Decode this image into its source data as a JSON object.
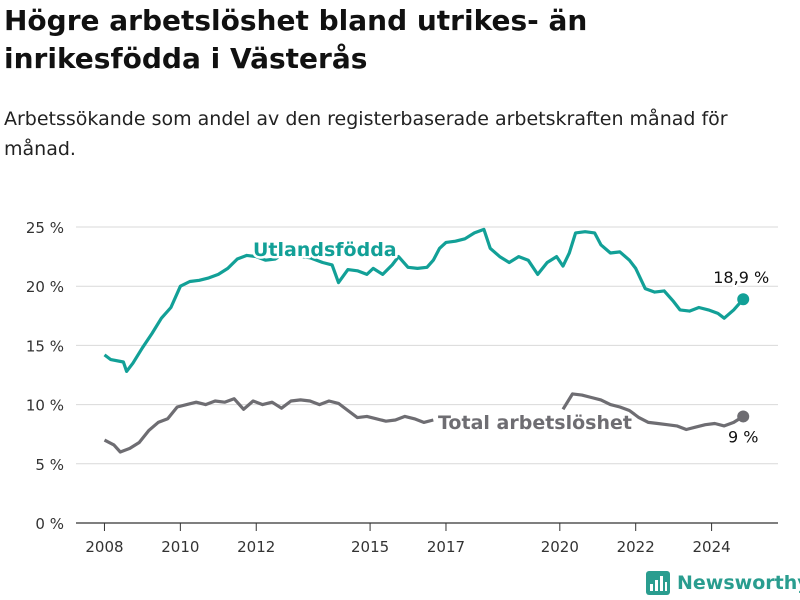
{
  "title": "Högre arbetslöshet bland utrikes- än inrikesfödda i Västerås",
  "subtitle": "Arbetssökande som andel av den registerbaserade arbetskraften månad för månad.",
  "brand": "Newsworthy",
  "colors": {
    "foreign": "#12a097",
    "total": "#6e6d72",
    "brand": "#2a9d8f"
  },
  "chart_data": {
    "type": "line",
    "ylim": [
      0,
      25
    ],
    "y_ticks": [
      0,
      5,
      10,
      15,
      20,
      25
    ],
    "y_tick_labels": [
      "0 %",
      "5 %",
      "10 %",
      "15 %",
      "20 %",
      "25 %"
    ],
    "xlim": [
      "2007-04",
      "2025-10"
    ],
    "x_ticks": [
      "2008-01",
      "2010-01",
      "2012-01",
      "2015-01",
      "2017-01",
      "2020-01",
      "2022-01",
      "2024-01"
    ],
    "x_tick_labels": [
      "2008",
      "2010",
      "2012",
      "2015",
      "2017",
      "2020",
      "2022",
      "2024"
    ],
    "series": [
      {
        "name": "Utlandsfödda",
        "color": "#12a097",
        "end_label": "18,9 %",
        "points": [
          [
            "2008-01",
            14.2
          ],
          [
            "2008-03",
            13.8
          ],
          [
            "2008-07",
            13.6
          ],
          [
            "2008-08",
            12.8
          ],
          [
            "2008-10",
            13.5
          ],
          [
            "2009-01",
            14.8
          ],
          [
            "2009-04",
            16.0
          ],
          [
            "2009-07",
            17.3
          ],
          [
            "2009-10",
            18.2
          ],
          [
            "2010-01",
            20.0
          ],
          [
            "2010-04",
            20.4
          ],
          [
            "2010-07",
            20.5
          ],
          [
            "2010-10",
            20.7
          ],
          [
            "2011-01",
            21.0
          ],
          [
            "2011-04",
            21.5
          ],
          [
            "2011-07",
            22.3
          ],
          [
            "2011-10",
            22.6
          ],
          [
            "2012-01",
            22.5
          ],
          [
            "2012-04",
            22.2
          ],
          [
            "2012-07",
            22.3
          ],
          [
            "2012-10",
            22.8
          ],
          [
            "2013-01",
            22.6
          ],
          [
            "2013-06",
            22.4
          ],
          [
            "2013-10",
            22.0
          ],
          [
            "2014-01",
            21.8
          ],
          [
            "2014-03",
            20.3
          ],
          [
            "2014-06",
            21.4
          ],
          [
            "2014-09",
            21.3
          ],
          [
            "2014-12",
            21.0
          ],
          [
            "2015-02",
            21.5
          ],
          [
            "2015-05",
            21.0
          ],
          [
            "2015-08",
            21.8
          ],
          [
            "2015-10",
            22.5
          ],
          [
            "2016-01",
            21.6
          ],
          [
            "2016-04",
            21.5
          ],
          [
            "2016-07",
            21.6
          ],
          [
            "2016-09",
            22.2
          ],
          [
            "2016-11",
            23.2
          ],
          [
            "2017-01",
            23.7
          ],
          [
            "2017-04",
            23.8
          ],
          [
            "2017-07",
            24.0
          ],
          [
            "2017-10",
            24.5
          ],
          [
            "2018-01",
            24.8
          ],
          [
            "2018-03",
            23.2
          ],
          [
            "2018-06",
            22.5
          ],
          [
            "2018-09",
            22.0
          ],
          [
            "2018-12",
            22.5
          ],
          [
            "2019-03",
            22.2
          ],
          [
            "2019-06",
            21.0
          ],
          [
            "2019-09",
            22.0
          ],
          [
            "2019-12",
            22.5
          ],
          [
            "2020-02",
            21.7
          ],
          [
            "2020-04",
            22.8
          ],
          [
            "2020-06",
            24.5
          ],
          [
            "2020-09",
            24.6
          ],
          [
            "2020-12",
            24.5
          ],
          [
            "2021-02",
            23.5
          ],
          [
            "2021-05",
            22.8
          ],
          [
            "2021-08",
            22.9
          ],
          [
            "2021-11",
            22.2
          ],
          [
            "2022-01",
            21.5
          ],
          [
            "2022-04",
            19.8
          ],
          [
            "2022-07",
            19.5
          ],
          [
            "2022-10",
            19.6
          ],
          [
            "2023-01",
            18.7
          ],
          [
            "2023-03",
            18.0
          ],
          [
            "2023-06",
            17.9
          ],
          [
            "2023-09",
            18.2
          ],
          [
            "2023-12",
            18.0
          ],
          [
            "2024-03",
            17.7
          ],
          [
            "2024-05",
            17.3
          ],
          [
            "2024-08",
            18.0
          ],
          [
            "2024-11",
            18.9
          ]
        ]
      },
      {
        "name": "Total arbetslöshet",
        "color": "#6e6d72",
        "end_label": "9 %",
        "points": [
          [
            "2008-01",
            7.0
          ],
          [
            "2008-04",
            6.6
          ],
          [
            "2008-06",
            6.0
          ],
          [
            "2008-09",
            6.3
          ],
          [
            "2008-12",
            6.8
          ],
          [
            "2009-03",
            7.8
          ],
          [
            "2009-06",
            8.5
          ],
          [
            "2009-09",
            8.8
          ],
          [
            "2009-12",
            9.8
          ],
          [
            "2010-03",
            10.0
          ],
          [
            "2010-06",
            10.2
          ],
          [
            "2010-09",
            10.0
          ],
          [
            "2010-12",
            10.3
          ],
          [
            "2011-03",
            10.2
          ],
          [
            "2011-06",
            10.5
          ],
          [
            "2011-09",
            9.6
          ],
          [
            "2011-12",
            10.3
          ],
          [
            "2012-03",
            10.0
          ],
          [
            "2012-06",
            10.2
          ],
          [
            "2012-09",
            9.7
          ],
          [
            "2012-12",
            10.3
          ],
          [
            "2013-03",
            10.4
          ],
          [
            "2013-06",
            10.3
          ],
          [
            "2013-09",
            10.0
          ],
          [
            "2013-12",
            10.3
          ],
          [
            "2014-03",
            10.1
          ],
          [
            "2014-06",
            9.5
          ],
          [
            "2014-09",
            8.9
          ],
          [
            "2014-12",
            9.0
          ],
          [
            "2015-03",
            8.8
          ],
          [
            "2015-06",
            8.6
          ],
          [
            "2015-09",
            8.7
          ],
          [
            "2015-12",
            9.0
          ],
          [
            "2016-03",
            8.8
          ],
          [
            "2016-06",
            8.5
          ],
          [
            "2016-09",
            8.7
          ]
        ],
        "points_b": [
          [
            "2020-02",
            9.6
          ],
          [
            "2020-05",
            10.9
          ],
          [
            "2020-08",
            10.8
          ],
          [
            "2020-11",
            10.6
          ],
          [
            "2021-02",
            10.4
          ],
          [
            "2021-05",
            10.0
          ],
          [
            "2021-08",
            9.8
          ],
          [
            "2021-11",
            9.5
          ],
          [
            "2022-02",
            8.9
          ],
          [
            "2022-05",
            8.5
          ],
          [
            "2022-08",
            8.4
          ],
          [
            "2022-11",
            8.3
          ],
          [
            "2023-02",
            8.2
          ],
          [
            "2023-05",
            7.9
          ],
          [
            "2023-08",
            8.1
          ],
          [
            "2023-11",
            8.3
          ],
          [
            "2024-02",
            8.4
          ],
          [
            "2024-05",
            8.2
          ],
          [
            "2024-08",
            8.5
          ],
          [
            "2024-11",
            9.0
          ]
        ]
      }
    ]
  }
}
